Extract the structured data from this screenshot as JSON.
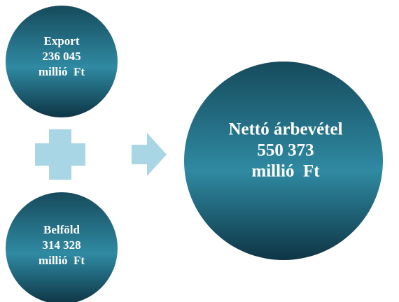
{
  "nodes": [
    {
      "lines": [
        "Export",
        "236 045",
        "millió  Ft"
      ]
    },
    {
      "lines": [
        "Belföld",
        "314 328",
        "millió  Ft"
      ]
    },
    {
      "lines": [
        "Nettó árbevétel",
        "550 373",
        "millió  Ft"
      ]
    }
  ]
}
